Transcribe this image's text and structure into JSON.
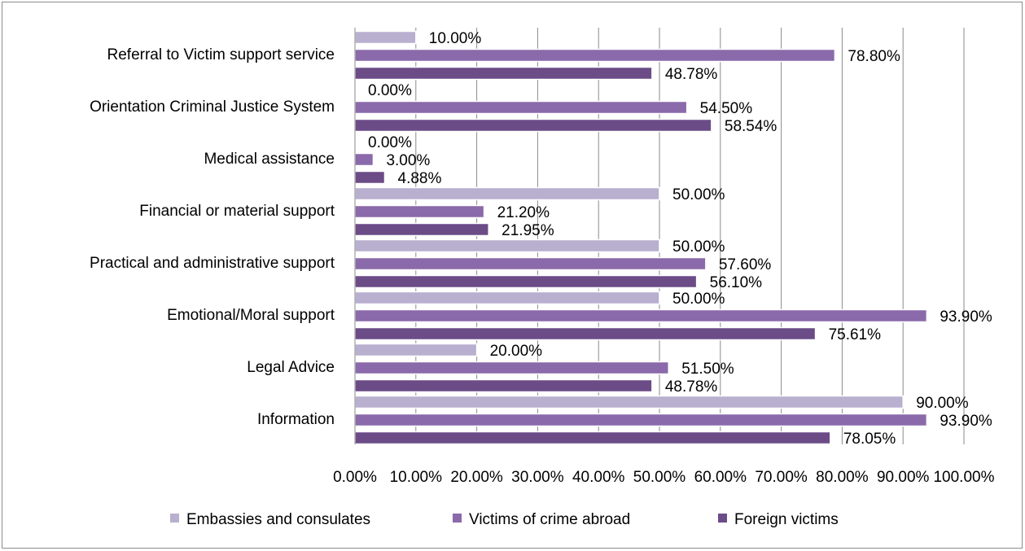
{
  "chart_data": {
    "type": "bar",
    "orientation": "horizontal",
    "categories": [
      "Referral to Victim support service",
      "Orientation Criminal Justice System",
      "Medical assistance",
      "Financial or material support",
      "Practical and administrative support",
      "Emotional/Moral support",
      "Legal Advice",
      "Information"
    ],
    "series": [
      {
        "name": "Embassies and consulates",
        "color": "#b9afcf",
        "values": [
          10.0,
          0.0,
          0.0,
          50.0,
          50.0,
          50.0,
          20.0,
          90.0
        ],
        "labels": [
          "10.00%",
          "0.00%",
          "0.00%",
          "50.00%",
          "50.00%",
          "50.00%",
          "20.00%",
          "90.00%"
        ]
      },
      {
        "name": "Victims of crime abroad",
        "color": "#8a6aaa",
        "values": [
          78.8,
          54.5,
          3.0,
          21.2,
          57.6,
          93.9,
          51.5,
          93.9
        ],
        "labels": [
          "78.80%",
          "54.50%",
          "3.00%",
          "21.20%",
          "57.60%",
          "93.90%",
          "51.50%",
          "93.90%"
        ]
      },
      {
        "name": "Foreign victims",
        "color": "#6b4c87",
        "values": [
          48.78,
          58.54,
          4.88,
          21.95,
          56.1,
          75.61,
          48.78,
          78.05
        ],
        "labels": [
          "48.78%",
          "58.54%",
          "4.88%",
          "21.95%",
          "56.10%",
          "75.61%",
          "48.78%",
          "78.05%"
        ]
      }
    ],
    "xlim": [
      0,
      100
    ],
    "xticks": [
      "0.00%",
      "10.00%",
      "20.00%",
      "30.00%",
      "40.00%",
      "50.00%",
      "60.00%",
      "70.00%",
      "80.00%",
      "90.00%",
      "100.00%"
    ],
    "grid": true,
    "legend": "bottom",
    "title": "",
    "xlabel": "",
    "ylabel": ""
  }
}
